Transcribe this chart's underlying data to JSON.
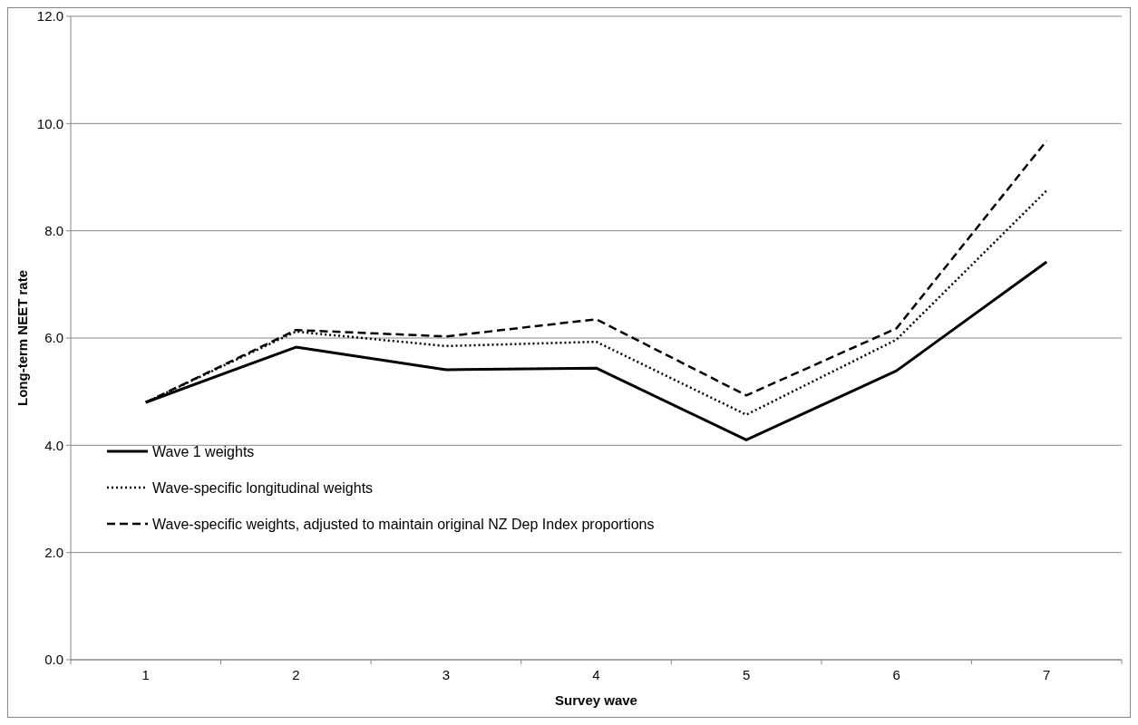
{
  "chart_data": {
    "type": "line",
    "xlabel": "Survey wave",
    "ylabel": "Long-term NEET rate",
    "categories": [
      "1",
      "2",
      "3",
      "4",
      "5",
      "6",
      "7"
    ],
    "ylim": [
      0,
      12
    ],
    "yticks": [
      {
        "value": 0,
        "label": "0.0"
      },
      {
        "value": 2,
        "label": "2.0"
      },
      {
        "value": 4,
        "label": "4.0"
      },
      {
        "value": 6,
        "label": "6.0"
      },
      {
        "value": 8,
        "label": "8.0"
      },
      {
        "value": 10,
        "label": "10.0"
      },
      {
        "value": 12,
        "label": "12.0"
      }
    ],
    "grid": "y",
    "legend": "bottom left",
    "marker": "none",
    "series": [
      {
        "name": "Wave 1 weights",
        "color": "#000000",
        "line_style": "solid",
        "values": [
          4.8,
          5.83,
          5.41,
          5.44,
          4.1,
          5.39,
          7.42
        ]
      },
      {
        "name": "Wave-specific longitudinal weights",
        "color": "#000000",
        "line_style": "dotted",
        "values": [
          4.8,
          6.12,
          5.85,
          5.93,
          4.57,
          5.97,
          8.75
        ]
      },
      {
        "name": "Wave-specific weights, adjusted to maintain original NZ Dep Index proportions",
        "color": "#000000",
        "line_style": "dashed",
        "values": [
          4.8,
          6.15,
          6.03,
          6.35,
          4.93,
          6.18,
          9.68
        ]
      }
    ]
  }
}
